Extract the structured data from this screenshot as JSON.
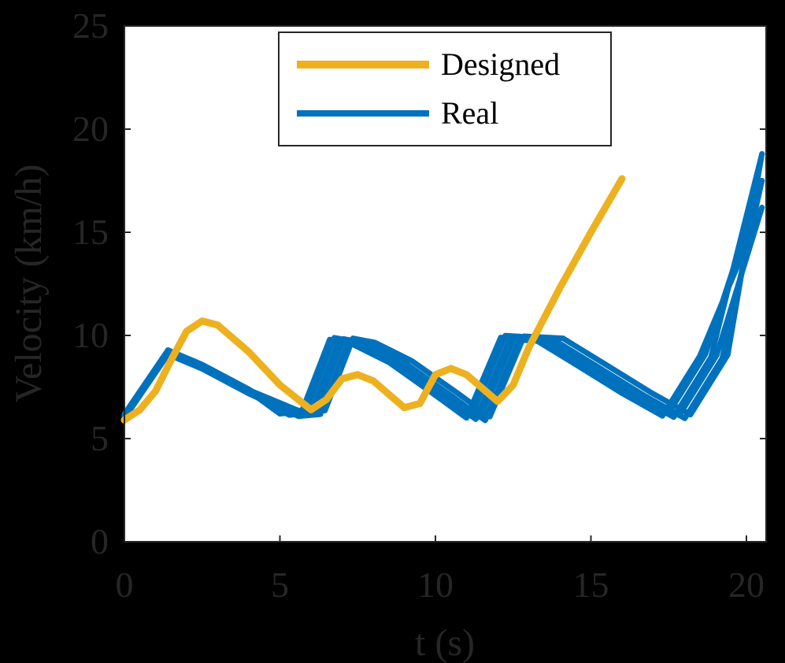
{
  "chart_data": {
    "type": "line",
    "title": "",
    "xlabel": "t (s)",
    "ylabel": "Velocity (km/h)",
    "xlim": [
      0,
      20.5
    ],
    "ylim": [
      0,
      25
    ],
    "xticks": [
      "0",
      "5",
      "10",
      "15",
      "20"
    ],
    "yticks": [
      "0",
      "5",
      "10",
      "15",
      "20",
      "25"
    ],
    "grid": false,
    "legend_position": "upper center",
    "colors": {
      "designed": "#EDB120",
      "real": "#0072BD"
    },
    "series": [
      {
        "name": "Designed",
        "x": [
          0,
          0.5,
          1,
          1.5,
          2,
          2.5,
          3,
          4,
          5,
          6,
          6.5,
          7,
          7.5,
          8,
          9,
          9.5,
          10,
          10.5,
          11,
          12,
          12.5,
          13,
          14,
          15,
          16
        ],
        "y": [
          5.9,
          6.4,
          7.3,
          8.8,
          10.2,
          10.7,
          10.5,
          9.2,
          7.6,
          6.4,
          6.9,
          7.9,
          8.1,
          7.8,
          6.5,
          6.7,
          8.1,
          8.4,
          8.1,
          6.8,
          7.6,
          9.4,
          12.3,
          15.0,
          17.6
        ]
      },
      {
        "name": "Real",
        "note": "multiple overlapping runs (~6); representative values",
        "x": [
          0,
          1.4,
          2.5,
          4,
          5,
          5.7,
          6.6,
          7.3,
          8.5,
          10,
          11,
          12.1,
          13.2,
          14.5,
          16,
          17.3,
          18.5,
          20.5
        ],
        "y": [
          6.1,
          9.2,
          8.5,
          7.3,
          6.2,
          6.3,
          9.8,
          9.6,
          8.7,
          7.1,
          6.0,
          9.9,
          9.8,
          8.6,
          7.2,
          6.1,
          9.0,
          17.5
        ]
      }
    ]
  },
  "legend": {
    "items": [
      {
        "label": "Designed"
      },
      {
        "label": "Real"
      }
    ]
  },
  "axes": {
    "xlabel": "t (s)",
    "ylabel": "Velocity (km/h)"
  }
}
